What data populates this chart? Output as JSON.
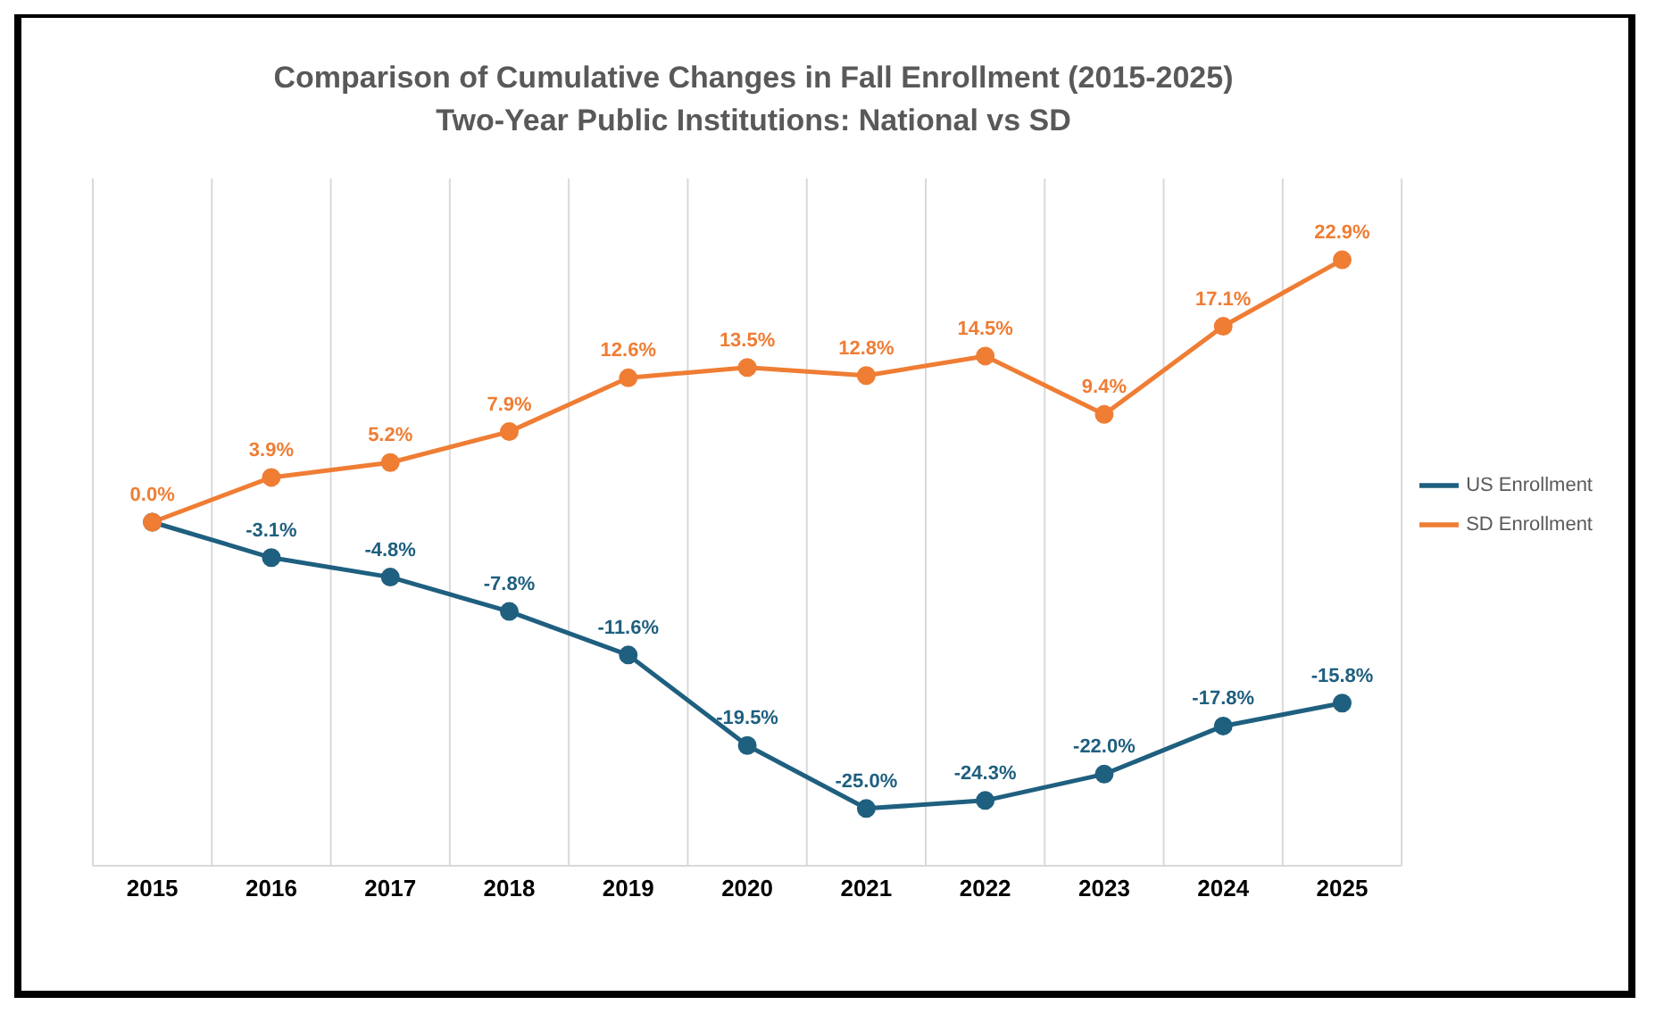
{
  "chart_data": {
    "type": "line",
    "title": "Comparison of Cumulative Changes in Fall Enrollment (2015-2025)",
    "subtitle": "Two-Year Public Institutions: National vs SD",
    "categories": [
      "2015",
      "2016",
      "2017",
      "2018",
      "2019",
      "2020",
      "2021",
      "2022",
      "2023",
      "2024",
      "2025"
    ],
    "series": [
      {
        "name": "US Enrollment",
        "color": "#1f5f7f",
        "values": [
          0,
          -3.1,
          -4.8,
          -7.8,
          -11.6,
          -19.5,
          -25.0,
          -24.3,
          -22.0,
          -17.8,
          -15.8
        ],
        "value_labels": [
          null,
          "-3.1%",
          "-4.8%",
          "-7.8%",
          "-11.6%",
          "-19.5%",
          "-25.0%",
          "-24.3%",
          "-22.0%",
          "-17.8%",
          "-15.8%"
        ]
      },
      {
        "name": "SD Enrollment",
        "color": "#ef7d34",
        "values": [
          0,
          3.9,
          5.2,
          7.9,
          12.6,
          13.5,
          12.8,
          14.5,
          9.4,
          17.1,
          22.9
        ],
        "value_labels": [
          "0.0%",
          "3.9%",
          "5.2%",
          "7.9%",
          "12.6%",
          "13.5%",
          "12.8%",
          "14.5%",
          "9.4%",
          "17.1%",
          "22.9%"
        ]
      }
    ],
    "grid": "x",
    "legend": "right",
    "marker": "circle",
    "line_style": "solid"
  }
}
